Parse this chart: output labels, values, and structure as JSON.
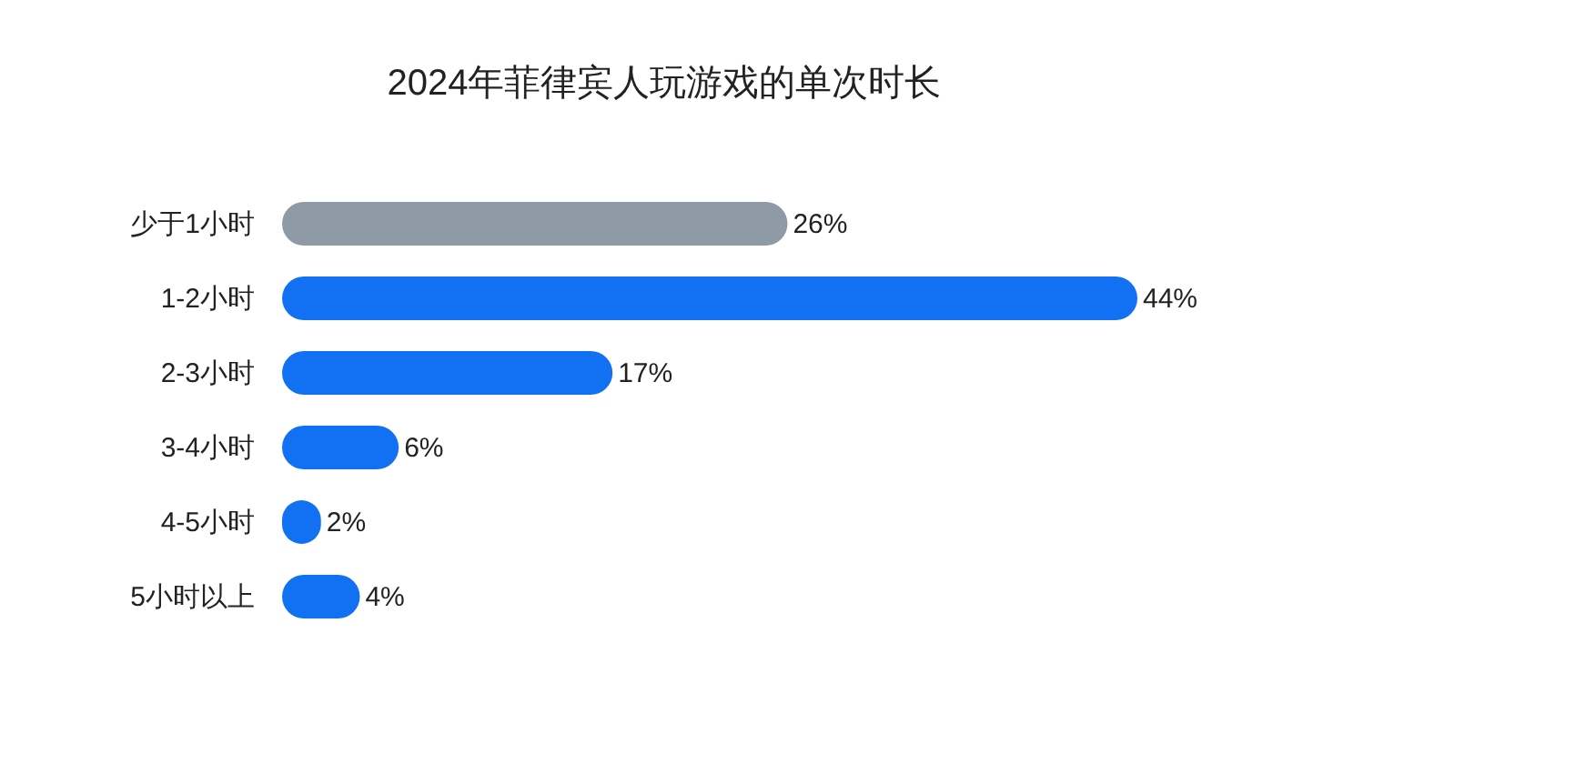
{
  "chart_data": {
    "type": "bar",
    "orientation": "horizontal",
    "title": "2024年菲律宾人玩游戏的单次时长",
    "categories": [
      "少于1小时",
      "1-2小时",
      "2-3小时",
      "3-4小时",
      "4-5小时",
      "5小时以上"
    ],
    "values": [
      26,
      44,
      17,
      6,
      2,
      4
    ],
    "colors": [
      "#8e9aa6",
      "#1271f2",
      "#1271f2",
      "#1271f2",
      "#1271f2",
      "#1271f2"
    ],
    "value_labels": [
      "26%",
      "44%",
      "17%",
      "6%",
      "2%",
      "4%"
    ]
  }
}
